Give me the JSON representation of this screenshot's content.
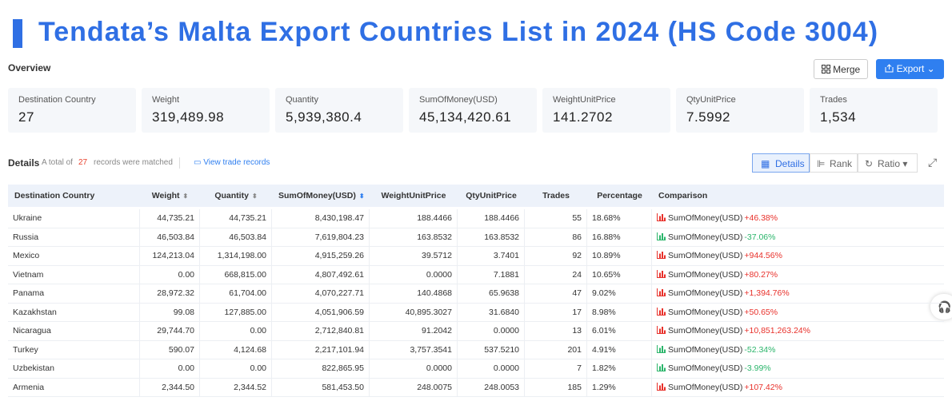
{
  "header": {
    "title": "Tendata’s Malta Export Countries List in 2024 (HS Code 3004)"
  },
  "overview": {
    "label": "Overview",
    "merge": "Merge",
    "export": "Export",
    "cards": [
      {
        "label": "Destination Country",
        "value": "27"
      },
      {
        "label": "Weight",
        "value": "319,489.98"
      },
      {
        "label": "Quantity",
        "value": "5,939,380.4"
      },
      {
        "label": "SumOfMoney(USD)",
        "value": "45,134,420.61"
      },
      {
        "label": "WeightUnitPrice",
        "value": "141.2702"
      },
      {
        "label": "QtyUnitPrice",
        "value": "7.5992"
      },
      {
        "label": "Trades",
        "value": "1,534"
      }
    ]
  },
  "details": {
    "label": "Details",
    "prefix": "A total of",
    "count": "27",
    "suffix": "records were matched",
    "link": "View trade records",
    "tabs": [
      "Details",
      "Rank",
      "Ratio"
    ]
  },
  "table": {
    "columns": [
      "Destination Country",
      "Weight",
      "Quantity",
      "SumOfMoney(USD)",
      "WeightUnitPrice",
      "QtyUnitPrice",
      "Trades",
      "Percentage",
      "Comparison"
    ],
    "rows": [
      [
        "Ukraine",
        "44,735.21",
        "44,735.21",
        "8,430,198.47",
        "188.4466",
        "188.4466",
        "55",
        "18.68%",
        "SumOfMoney(USD)",
        "+46.38%"
      ],
      [
        "Russia",
        "46,503.84",
        "46,503.84",
        "7,619,804.23",
        "163.8532",
        "163.8532",
        "86",
        "16.88%",
        "SumOfMoney(USD)",
        "-37.06%"
      ],
      [
        "Mexico",
        "124,213.04",
        "1,314,198.00",
        "4,915,259.26",
        "39.5712",
        "3.7401",
        "92",
        "10.89%",
        "SumOfMoney(USD)",
        "+944.56%"
      ],
      [
        "Vietnam",
        "0.00",
        "668,815.00",
        "4,807,492.61",
        "0.0000",
        "7.1881",
        "24",
        "10.65%",
        "SumOfMoney(USD)",
        "+80.27%"
      ],
      [
        "Panama",
        "28,972.32",
        "61,704.00",
        "4,070,227.71",
        "140.4868",
        "65.9638",
        "47",
        "9.02%",
        "SumOfMoney(USD)",
        "+1,394.76%"
      ],
      [
        "Kazakhstan",
        "99.08",
        "127,885.00",
        "4,051,906.59",
        "40,895.3027",
        "31.6840",
        "17",
        "8.98%",
        "SumOfMoney(USD)",
        "+50.65%"
      ],
      [
        "Nicaragua",
        "29,744.70",
        "0.00",
        "2,712,840.81",
        "91.2042",
        "0.0000",
        "13",
        "6.01%",
        "SumOfMoney(USD)",
        "+10,851,263.24%"
      ],
      [
        "Turkey",
        "590.07",
        "4,124.68",
        "2,217,101.94",
        "3,757.3541",
        "537.5210",
        "201",
        "4.91%",
        "SumOfMoney(USD)",
        "-52.34%"
      ],
      [
        "Uzbekistan",
        "0.00",
        "0.00",
        "822,865.95",
        "0.0000",
        "0.0000",
        "7",
        "1.82%",
        "SumOfMoney(USD)",
        "-3.99%"
      ],
      [
        "Armenia",
        "2,344.50",
        "2,344.52",
        "581,453.50",
        "248.0075",
        "248.0053",
        "185",
        "1.29%",
        "SumOfMoney(USD)",
        "+107.42%"
      ]
    ]
  }
}
